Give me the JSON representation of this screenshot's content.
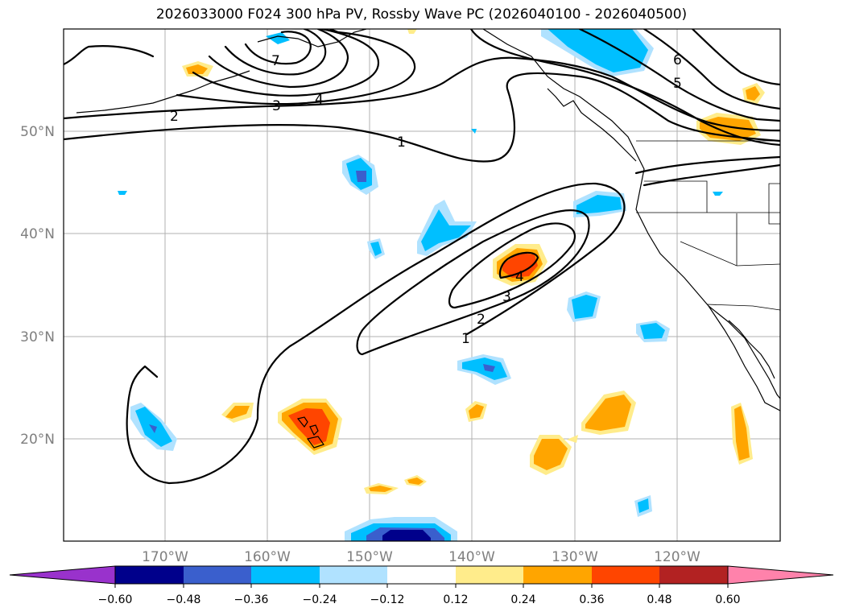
{
  "title": "2026033000 F024 300 hPa PV, Rossby Wave PC (2026040100 - 2026040500)",
  "lat_labels": [
    "50°N",
    "40°N",
    "30°N",
    "20°N"
  ],
  "lon_labels": [
    "170°W",
    "160°W",
    "150°W",
    "140°W",
    "130°W",
    "120°W"
  ],
  "contour_labels": [
    "1",
    "2",
    "3",
    "4",
    "5",
    "6",
    "7",
    "1",
    "2",
    "3",
    "4"
  ],
  "colorbar": {
    "ticks": [
      "−0.60",
      "−0.48",
      "−0.36",
      "−0.24",
      "−0.12",
      "0.12",
      "0.24",
      "0.36",
      "0.48",
      "0.60"
    ],
    "colors": [
      "#9932cc",
      "#00008b",
      "#3a5fcd",
      "#00bfff",
      "#b0e2ff",
      "#ffffff",
      "#ffec8b",
      "#ffa500",
      "#ff4500",
      "#b22222",
      "#ff82ab"
    ]
  }
}
